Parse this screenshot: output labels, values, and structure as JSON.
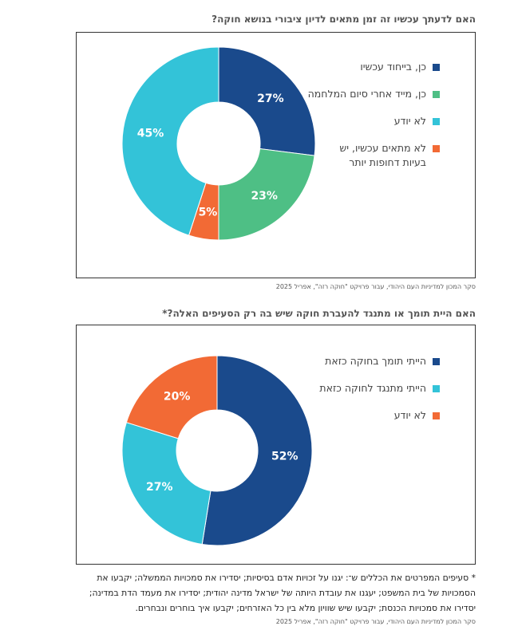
{
  "chart_data": [
    {
      "type": "pie",
      "title": "האם לדעתך עכשיו זה זמן מתאים לדיון ציבורי בנושא חוקה?",
      "categories": [
        "כן, בייחוד עכשיו",
        "כן, מייד אחרי סיום המלחמה",
        "לא מתאים עכשיו, יש\nבעיות דחופות יותר",
        "לא יודע"
      ],
      "values": [
        27,
        23,
        5,
        45
      ],
      "value_labels": [
        "27%",
        "23%",
        "5%",
        "45%"
      ],
      "colors": [
        "#1a4a8c",
        "#4ebf85",
        "#f26a35",
        "#33c3d8"
      ],
      "legend_order": [
        0,
        1,
        3,
        2
      ],
      "legend_position": "right",
      "source": "סקר המכון למדיניות העם היהודי, עבור פרויקט \"חוקה רזה\", אפריל 2025"
    },
    {
      "type": "pie",
      "title": "האם היית תומך או מתנגד להעברת חוקה שיש בה רק הסעיפים האלה?*",
      "categories": [
        "הייתי תומך בחוקה כזאת",
        "הייתי מתנגד לחוקה כזאת",
        "לא יודע"
      ],
      "values": [
        52,
        27,
        20
      ],
      "value_labels": [
        "52%",
        "27%",
        "20%"
      ],
      "colors": [
        "#1a4a8c",
        "#33c3d8",
        "#f26a35"
      ],
      "legend_position": "right",
      "source": "סקר המכון למדיניות העם היהודי, עבור פרויקט \"חוקה רזה\", אפריל 2025"
    }
  ],
  "footnote": {
    "text": "* סעיפים המפרטים את הכללים ש־: יגנו על זכויות אדם בסיסיות; יסדירו את סמכויות הממשלה; יקבעו את הסמכויות של בית המשפט; יעגנו את עובדת היותה של ישראל מדינה יהודית; יסדירו את מעמד הדת במדינה; יסדירו את סמכויות הכנסת; יקבעו שיש שוויון מלא בין כל האזרחים; יקבעו איך בוחרים ונבחרים."
  }
}
